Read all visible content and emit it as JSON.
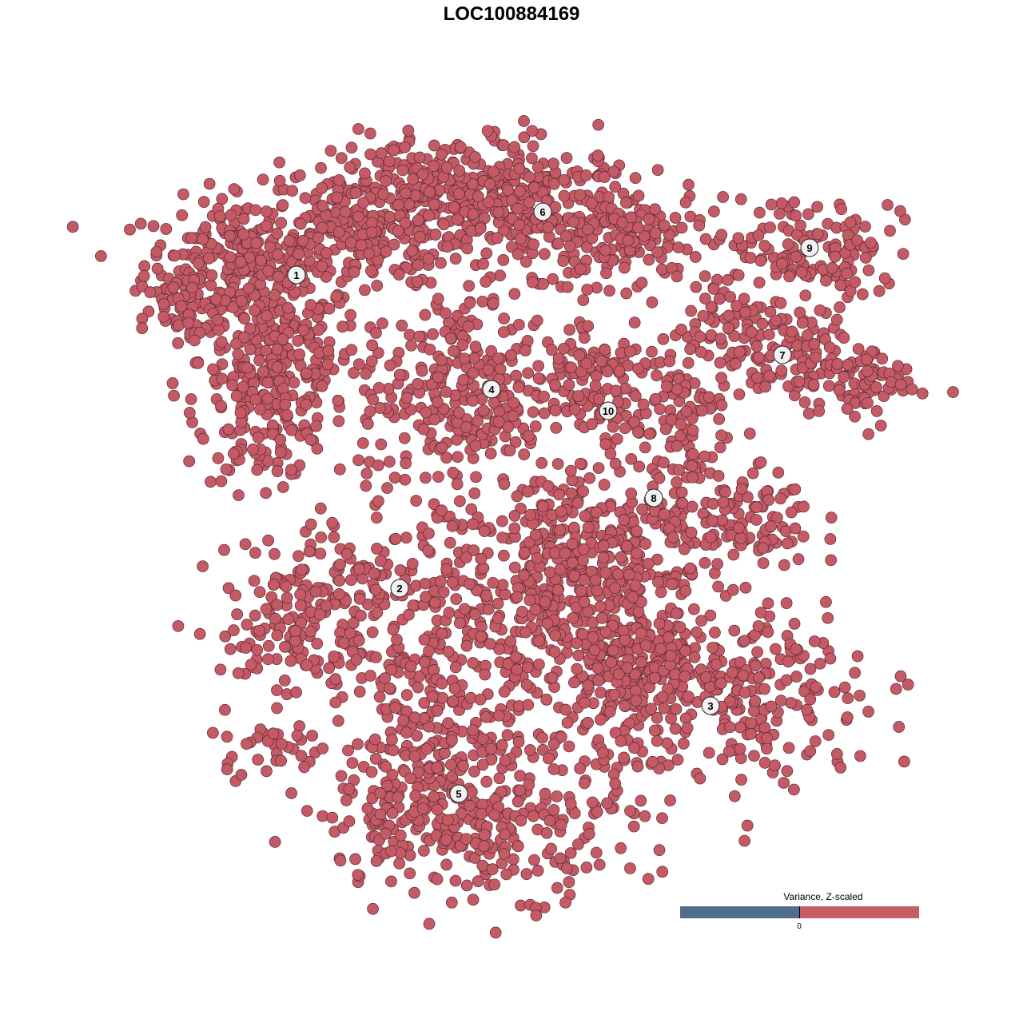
{
  "chart_data": {
    "type": "scatter",
    "title": "LOC100884169",
    "point_color": "#c45a66",
    "point_stroke": "#5a2a30",
    "xlim": [
      -64,
      64
    ],
    "ylim": [
      -64,
      64
    ],
    "axes_visible": false,
    "grid": false,
    "clusters": [
      {
        "label": "1",
        "label_pos": [
          -26.9,
          29.6
        ],
        "blobs": [
          [
            -34,
            31,
            6,
            4,
            260
          ],
          [
            -29,
            19,
            5,
            5,
            200
          ],
          [
            -31,
            12,
            4,
            4,
            120
          ],
          [
            -41,
            24,
            2.5,
            3,
            50
          ],
          [
            -19,
            36,
            6,
            4,
            220
          ]
        ]
      },
      {
        "label": "6",
        "label_pos": [
          3.9,
          37.5
        ],
        "blobs": [
          [
            -8,
            40,
            7,
            3.5,
            220
          ],
          [
            4,
            38,
            6,
            4,
            200
          ],
          [
            14,
            34,
            5,
            3,
            120
          ]
        ]
      },
      {
        "label": "9",
        "label_pos": [
          37.3,
          33
        ],
        "blobs": [
          [
            36,
            34,
            6,
            3,
            100
          ],
          [
            41,
            30,
            2,
            3,
            30
          ]
        ]
      },
      {
        "label": "4",
        "label_pos": [
          -2.5,
          15.3
        ],
        "blobs": [
          [
            -6,
            15,
            6.5,
            6.5,
            300
          ]
        ]
      },
      {
        "label": "10",
        "label_pos": [
          12.1,
          12.6
        ],
        "blobs": [
          [
            11,
            19,
            4,
            3,
            70
          ],
          [
            12,
            13,
            2.5,
            3,
            40
          ]
        ]
      },
      {
        "label": "7",
        "label_pos": [
          33.9,
          19.6
        ],
        "blobs": [
          [
            26,
            24,
            4,
            3,
            70
          ],
          [
            36,
            19,
            5,
            3,
            110
          ],
          [
            44,
            16,
            4,
            2.5,
            60
          ]
        ]
      },
      {
        "label": "8",
        "label_pos": [
          17.8,
          1.7
        ],
        "blobs": [
          [
            21,
            11,
            3,
            5,
            90
          ],
          [
            28,
            -1,
            5,
            3,
            110
          ],
          [
            12,
            0,
            6,
            2.5,
            80
          ]
        ]
      },
      {
        "label": "2",
        "label_pos": [
          -14,
          -9.6
        ],
        "blobs": [
          [
            -22,
            -9,
            7,
            3,
            120
          ],
          [
            -27,
            -17,
            5,
            3,
            90
          ],
          [
            -30,
            -29,
            4,
            2,
            35
          ]
        ]
      },
      {
        "label": "3",
        "label_pos": [
          24.9,
          -24.3
        ],
        "blobs": [
          [
            26,
            -23,
            10,
            6,
            300
          ],
          [
            16,
            -18,
            5,
            6,
            160
          ]
        ]
      },
      {
        "label": "5",
        "label_pos": [
          -6.6,
          -35.3
        ],
        "blobs": [
          [
            1,
            -14,
            11,
            9,
            450
          ],
          [
            -4,
            -38,
            10,
            5,
            320
          ],
          [
            -12,
            -28,
            4,
            6,
            120
          ],
          [
            8,
            -8,
            6,
            4,
            140
          ]
        ]
      }
    ],
    "legend": {
      "title": "Variance, Z-scaled",
      "tick_label": "0",
      "colors": {
        "negative": "#516e8f",
        "positive": "#c55c66"
      },
      "placement": "bottom-right"
    }
  }
}
